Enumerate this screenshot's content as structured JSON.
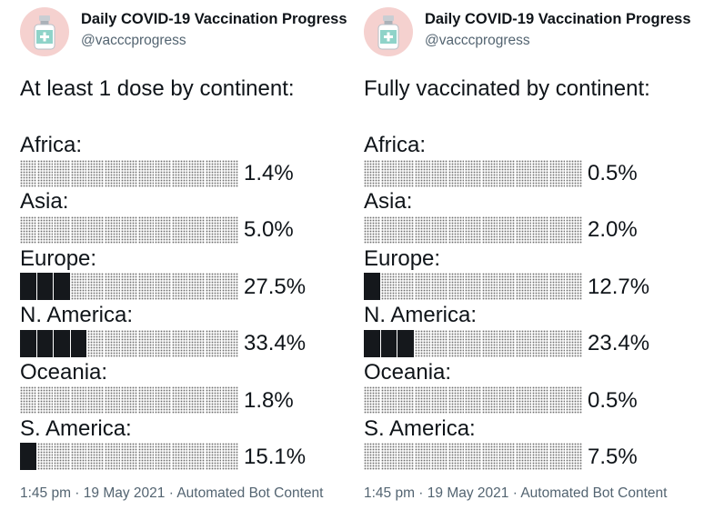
{
  "tweets": [
    {
      "author": {
        "display_name": "Daily COVID-19 Vaccination Progress",
        "handle": "@vacccprogress",
        "avatar_icon": "vaccine-vial-icon"
      },
      "heading": "At least 1 dose by continent:",
      "rows": [
        {
          "label": "Africa:",
          "percent_text": "1.4%",
          "percent": 1.4
        },
        {
          "label": "Asia:",
          "percent_text": "5.0%",
          "percent": 5.0
        },
        {
          "label": "Europe:",
          "percent_text": "27.5%",
          "percent": 27.5
        },
        {
          "label": "N. America:",
          "percent_text": "33.4%",
          "percent": 33.4
        },
        {
          "label": "Oceania:",
          "percent_text": "1.8%",
          "percent": 1.8
        },
        {
          "label": "S. America:",
          "percent_text": "15.1%",
          "percent": 15.1
        }
      ],
      "footer": "1:45 pm · 19 May 2021 · Automated Bot Content"
    },
    {
      "author": {
        "display_name": "Daily COVID-19 Vaccination Progress",
        "handle": "@vacccprogress",
        "avatar_icon": "vaccine-vial-icon"
      },
      "heading": "Fully vaccinated by continent:",
      "rows": [
        {
          "label": "Africa:",
          "percent_text": "0.5%",
          "percent": 0.5
        },
        {
          "label": "Asia:",
          "percent_text": "2.0%",
          "percent": 2.0
        },
        {
          "label": "Europe:",
          "percent_text": "12.7%",
          "percent": 12.7
        },
        {
          "label": "N. America:",
          "percent_text": "23.4%",
          "percent": 23.4
        },
        {
          "label": "Oceania:",
          "percent_text": "0.5%",
          "percent": 0.5
        },
        {
          "label": "S. America:",
          "percent_text": "7.5%",
          "percent": 7.5
        }
      ],
      "footer": "1:45 pm · 19 May 2021 · Automated Bot Content"
    }
  ],
  "colors": {
    "avatar_background": "#f5d1cf",
    "bar_filled": "#15181c",
    "bar_empty_dots": "#6e6e6e",
    "secondary_text": "#536471"
  }
}
